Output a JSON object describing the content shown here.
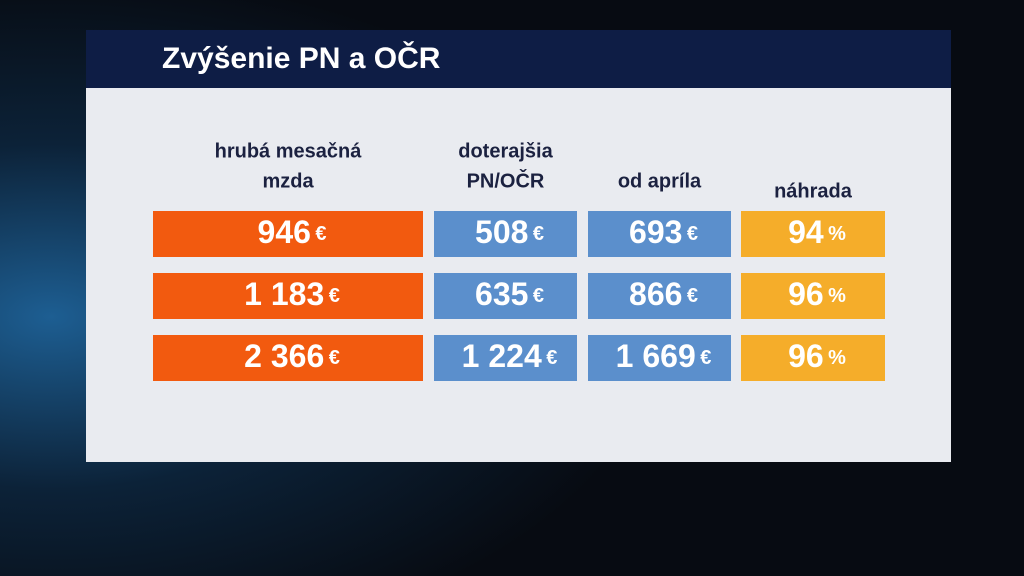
{
  "title": "Zvýšenie PN a OČR",
  "table": {
    "headers": [
      [
        "hrubá mesačná",
        "mzda"
      ],
      [
        "doterajšia",
        "PN/OČR"
      ],
      [
        "od apríla"
      ],
      [
        "náhrada"
      ]
    ],
    "rows": [
      [
        [
          "946",
          "€"
        ],
        [
          "508",
          "€"
        ],
        [
          "693",
          "€"
        ],
        [
          "94",
          "%"
        ]
      ],
      [
        [
          "1 183",
          "€"
        ],
        [
          "635",
          "€"
        ],
        [
          "866",
          "€"
        ],
        [
          "96",
          "%"
        ]
      ],
      [
        [
          "2 366",
          "€"
        ],
        [
          "1 224",
          "€"
        ],
        [
          "1 669",
          "€"
        ],
        [
          "96",
          "%"
        ]
      ]
    ]
  }
}
